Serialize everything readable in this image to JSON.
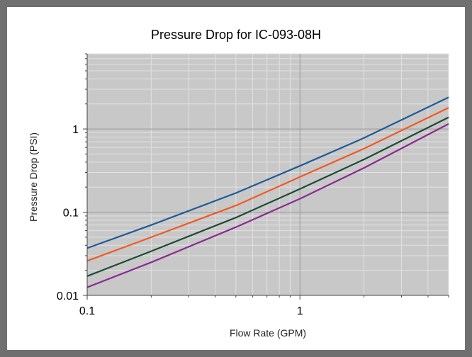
{
  "chart_data": {
    "type": "line",
    "title": "Pressure Drop for IC-093-08H",
    "xlabel": "Flow Rate (GPM)",
    "ylabel": "Pressure Drop (PSI)",
    "x_scale": "log",
    "y_scale": "log",
    "xlim": [
      0.1,
      5
    ],
    "ylim": [
      0.01,
      8
    ],
    "x_ticks": [
      {
        "value": 0.1,
        "label": "0.1"
      },
      {
        "value": 1,
        "label": "1"
      }
    ],
    "y_ticks": [
      {
        "value": 0.01,
        "label": "0.01"
      },
      {
        "value": 0.1,
        "label": "0.1"
      },
      {
        "value": 1,
        "label": "1"
      }
    ],
    "grid": true,
    "plot_background": "#c8c8c8",
    "series": [
      {
        "color": "#1f5a96",
        "x": [
          0.1,
          0.2,
          0.5,
          1,
          2,
          5
        ],
        "y": [
          0.037,
          0.07,
          0.17,
          0.36,
          0.78,
          2.4
        ]
      },
      {
        "color": "#f05a22",
        "x": [
          0.1,
          0.2,
          0.5,
          1,
          2,
          5
        ],
        "y": [
          0.026,
          0.05,
          0.12,
          0.265,
          0.58,
          1.8
        ]
      },
      {
        "color": "#1e4a36",
        "x": [
          0.1,
          0.2,
          0.5,
          1,
          2,
          5
        ],
        "y": [
          0.017,
          0.034,
          0.086,
          0.19,
          0.43,
          1.38
        ]
      },
      {
        "color": "#8a2a92",
        "x": [
          0.1,
          0.2,
          0.5,
          1,
          2,
          5
        ],
        "y": [
          0.0125,
          0.025,
          0.066,
          0.145,
          0.34,
          1.15
        ]
      }
    ]
  }
}
